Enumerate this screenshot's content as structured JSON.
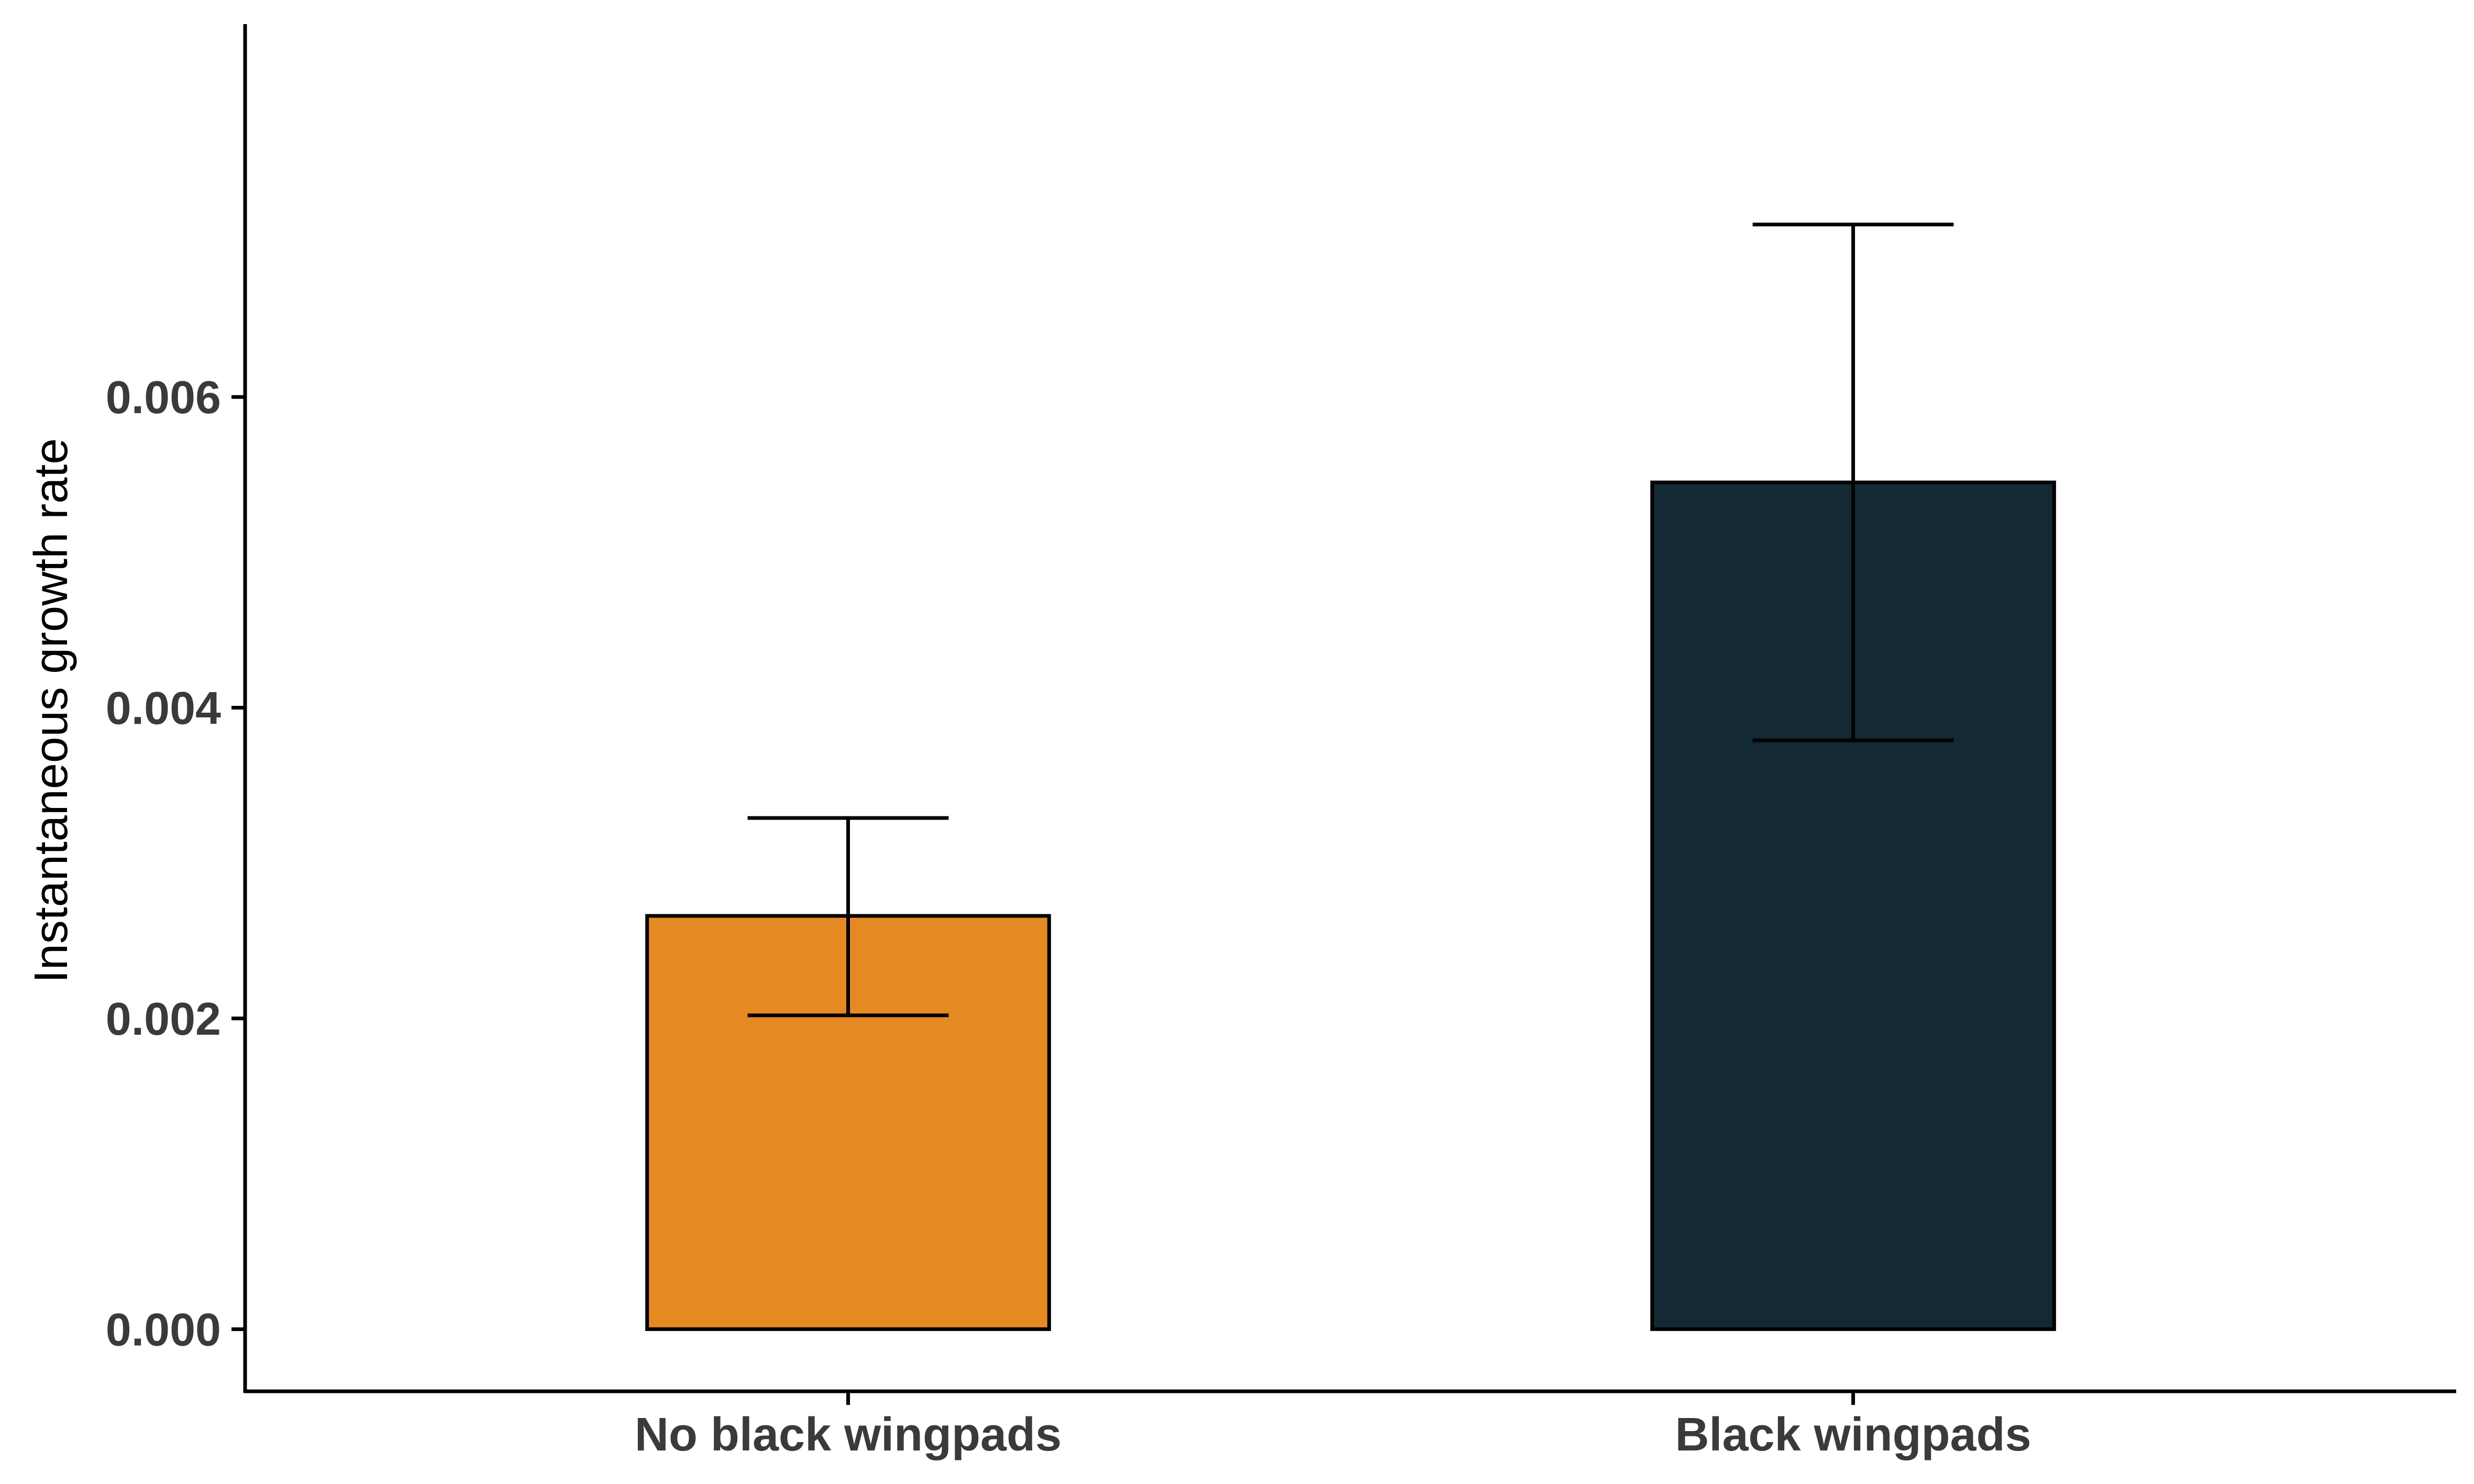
{
  "chart_data": {
    "type": "bar",
    "categories": [
      "No black wingpads",
      "Black wingpads"
    ],
    "values": [
      0.00266,
      0.00545
    ],
    "error_low": [
      0.00202,
      0.00379
    ],
    "error_high": [
      0.00329,
      0.00711
    ],
    "bar_colors": [
      "#E58A22",
      "#132933"
    ],
    "ylabel": "Instantaneous growth rate",
    "xlabel": "",
    "ylim": [
      -0.0004,
      0.0084
    ],
    "y_ticks": [
      0.0,
      0.002,
      0.004,
      0.006
    ],
    "y_tick_labels": [
      "0.000",
      "0.002",
      "0.004",
      "0.006"
    ],
    "grid": false,
    "legend": "none"
  }
}
